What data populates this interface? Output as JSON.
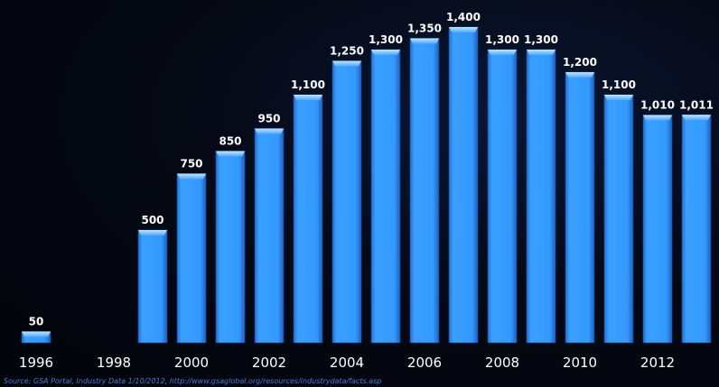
{
  "chart_data": {
    "type": "bar",
    "categories": [
      "1996",
      "1997",
      "1998",
      "1999",
      "2000",
      "2001",
      "2002",
      "2003",
      "2004",
      "2005",
      "2006",
      "2007",
      "2008",
      "2009",
      "2010",
      "2011",
      "2012",
      "2013"
    ],
    "values": [
      50,
      null,
      null,
      500,
      750,
      850,
      950,
      1100,
      1250,
      1300,
      1350,
      1400,
      1300,
      1300,
      1200,
      1100,
      1010,
      1011
    ],
    "value_labels": [
      "50",
      "",
      "",
      "500",
      "750",
      "850",
      "950",
      "1,100",
      "1,250",
      "1,300",
      "1,350",
      "1,400",
      "1,300",
      "1,300",
      "1,200",
      "1,100",
      "1,010",
      "1,011"
    ],
    "x_tick_labels": [
      "1996",
      "1998",
      "2000",
      "2002",
      "2004",
      "2006",
      "2008",
      "2010",
      "2012"
    ],
    "title": "",
    "xlabel": "",
    "ylabel": "",
    "ylim": [
      0,
      1400
    ],
    "grid": false,
    "legend": "none",
    "bar_color": "#3399ff",
    "bar_top_color": "#8fd0ff",
    "label_color": "#ffffff",
    "background_color": "#03060f"
  },
  "source_note": "Source: GSA Portal, Industry Data 1/10/2012, http://www.gsaglobal.org/resources/industrydata/facts.asp"
}
